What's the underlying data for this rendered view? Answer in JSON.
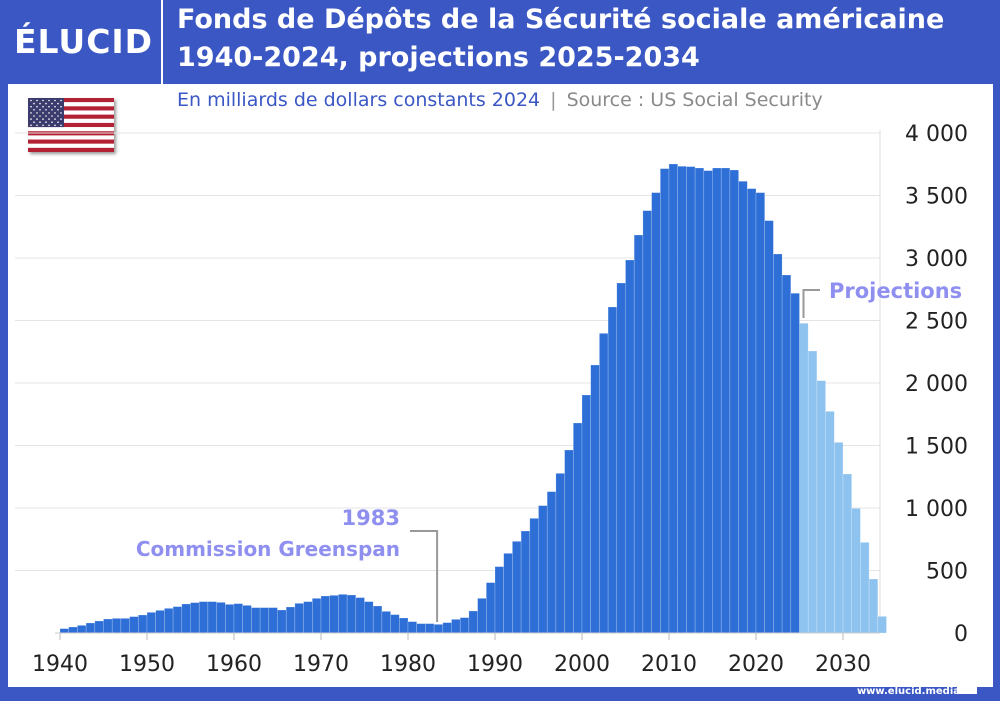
{
  "brand": {
    "logo": "ÉLUCID",
    "website": "www.elucid.media",
    "frame_color": "#3b57c4"
  },
  "header": {
    "title_line1": "Fonds de Dépôts de la Sécurité sociale américaine",
    "title_line2": "1940-2024, projections 2025-2034",
    "subtitle": "En milliards de dollars constants 2024",
    "separator": "|",
    "source": "Source : US Social Security"
  },
  "flag_icon": "us-flag-icon",
  "chart_data": {
    "type": "bar",
    "title": "Fonds de Dépôts de la Sécurité sociale américaine 1940-2024, projections 2025-2034",
    "ylabel": "En milliards de dollars constants 2024",
    "ylim": [
      0,
      4000
    ],
    "yticks": [
      0,
      500,
      1000,
      1500,
      2000,
      2500,
      3000,
      3500,
      4000
    ],
    "ytick_labels": [
      "0",
      "500",
      "1 000",
      "1 500",
      "2 000",
      "2 500",
      "3 000",
      "3 500",
      "4 000"
    ],
    "xticks": [
      1940,
      1950,
      1960,
      1970,
      1980,
      1990,
      2000,
      2010,
      2020,
      2030
    ],
    "xtick_labels": [
      "1940",
      "1950",
      "1960",
      "1970",
      "1980",
      "1990",
      "2000",
      "2010",
      "2020",
      "2030"
    ],
    "grid": true,
    "start_year": 1940,
    "colors": {
      "historical": "#2d6fd6",
      "projection": "#8ec3f0",
      "annotation": "#8f8ff0"
    },
    "projection_from": 2025,
    "values": [
      35,
      48,
      61,
      80,
      96,
      112,
      117,
      117,
      131,
      144,
      165,
      181,
      197,
      211,
      232,
      243,
      251,
      251,
      245,
      229,
      235,
      221,
      203,
      203,
      203,
      184,
      208,
      237,
      251,
      277,
      296,
      301,
      309,
      304,
      283,
      251,
      216,
      173,
      147,
      120,
      91,
      75,
      75,
      69,
      83,
      109,
      123,
      176,
      277,
      403,
      531,
      637,
      733,
      816,
      917,
      1019,
      1131,
      1277,
      1464,
      1680,
      1904,
      2144,
      2397,
      2608,
      2800,
      2984,
      3184,
      3379,
      3523,
      3715,
      3752,
      3734,
      3731,
      3720,
      3699,
      3720,
      3720,
      3704,
      3614,
      3555,
      3523,
      3299,
      3032,
      2864,
      2718,
      2478,
      2256,
      2019,
      1773,
      1525,
      1272,
      997,
      725,
      432,
      133
    ],
    "annotations": [
      {
        "year_label": "1983",
        "text": "Commission Greenspan",
        "x": 1983
      },
      {
        "text": "Projections",
        "x": 2025
      }
    ]
  }
}
